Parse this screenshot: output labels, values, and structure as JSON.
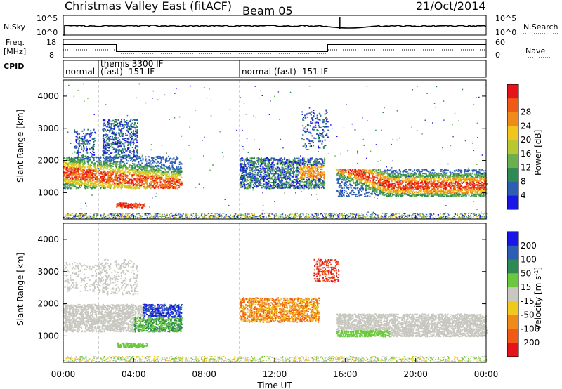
{
  "header": {
    "title": "Christmas Valley East (fitACF)",
    "beam": "Beam 05",
    "date": "21/Oct/2014"
  },
  "strip_nsky": {
    "label": "N.Sky",
    "ytop": "10^5",
    "ybot": "10^0",
    "right_top": "10^5",
    "right_bot": "10^0",
    "right_label": "N.Search"
  },
  "strip_freq": {
    "label_line1": "Freq.",
    "label_line2": "[MHz]",
    "ytop": "18",
    "ybot": "8",
    "right_top": "60",
    "right_bot": "0",
    "right_label": "Nave"
  },
  "cpid": {
    "label": "CPID",
    "segments": [
      {
        "text": "normal",
        "start_hr": 0,
        "end_hr": 2
      },
      {
        "text_line1": "themis 3300 IF",
        "text_line2": "(fast) -151 IF",
        "start_hr": 2,
        "end_hr": 10
      },
      {
        "text": "normal (fast) -151 IF",
        "start_hr": 10,
        "end_hr": 24
      }
    ]
  },
  "chart_data": [
    {
      "type": "heatmap",
      "panel": "power",
      "ylabel": "Slant Range [km]",
      "yticks": [
        1000,
        2000,
        3000,
        4000
      ],
      "ylim": [
        180,
        4500
      ],
      "xlim_hr": [
        0,
        24
      ],
      "colorbar": {
        "label": "Power [dB]",
        "ticks": [
          4,
          8,
          12,
          16,
          20,
          24,
          28
        ],
        "colors": [
          "#1a16e6",
          "#2c5fb3",
          "#2e8a55",
          "#6bb04d",
          "#b8c832",
          "#f2c51e",
          "#f08a1a",
          "#f05a14",
          "#e6141a"
        ]
      },
      "regions": [
        {
          "x0": 0.0,
          "x1": 6.7,
          "y0": 1200,
          "y1": 2100,
          "level": "high"
        },
        {
          "x0": 10.0,
          "x1": 14.9,
          "y0": 1200,
          "y1": 2000,
          "level": "mid"
        },
        {
          "x0": 15.5,
          "x1": 24.0,
          "y0": 900,
          "y1": 1700,
          "level": "high"
        }
      ]
    },
    {
      "type": "heatmap",
      "panel": "velocity",
      "ylabel": "Slant Range [km]",
      "yticks": [
        1000,
        2000,
        3000,
        4000
      ],
      "ylim": [
        180,
        4500
      ],
      "xlim_hr": [
        0,
        24
      ],
      "xticks": [
        "00:00",
        "04:00",
        "08:00",
        "12:00",
        "16:00",
        "20:00",
        "00:00"
      ],
      "xlabel": "Time UT",
      "colorbar": {
        "label": "Velocity [m s^-1]",
        "ticks": [
          200,
          100,
          50,
          15,
          -15,
          -50,
          -100,
          -200
        ],
        "colors": [
          "#1a16e6",
          "#2c5fb3",
          "#2e8a55",
          "#6bc83c",
          "#c8c8c0",
          "#f0c81e",
          "#f08a1a",
          "#f05a14",
          "#e6141a"
        ]
      }
    }
  ]
}
